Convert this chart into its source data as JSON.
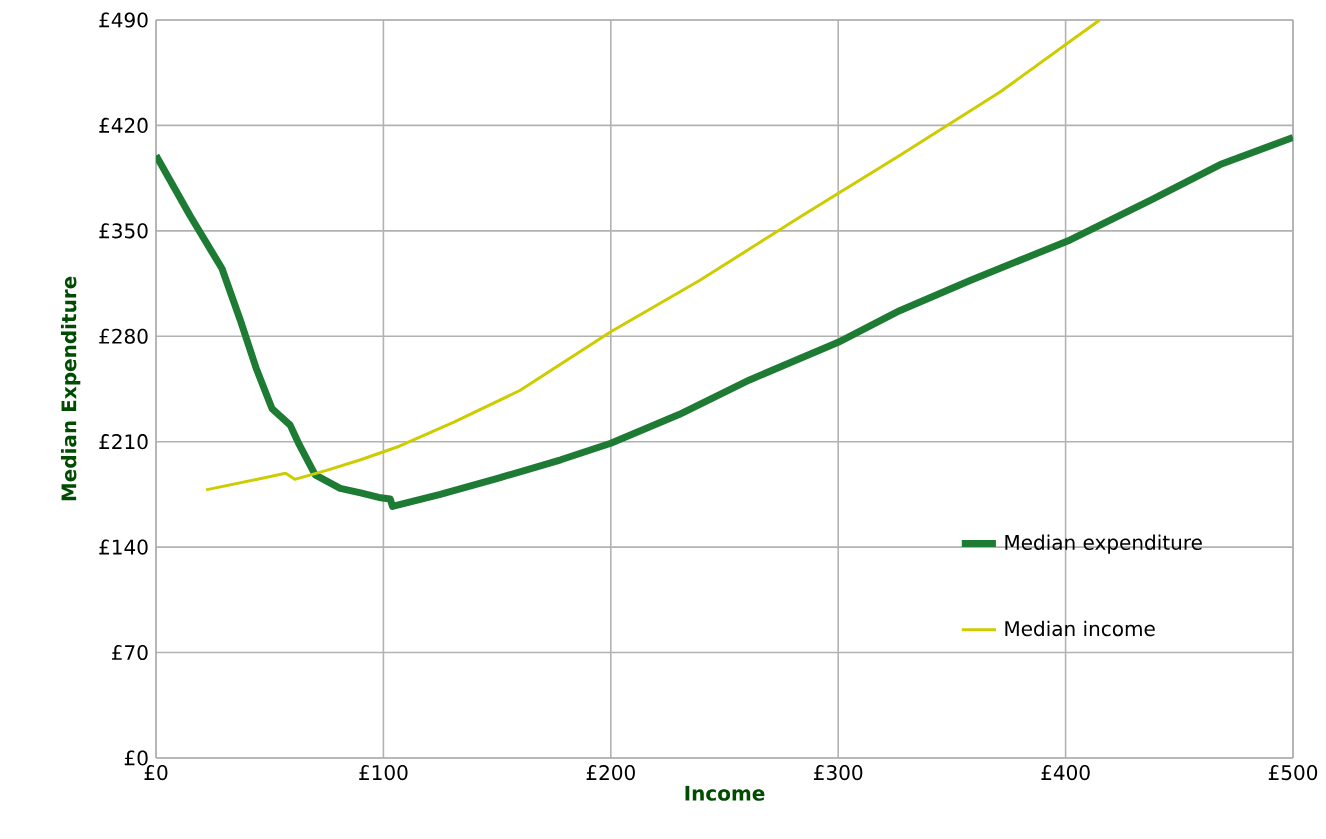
{
  "chart_data": {
    "type": "line",
    "xlabel": "Income",
    "ylabel": "Median Expenditure",
    "xlim": [
      0,
      500
    ],
    "ylim": [
      0,
      490
    ],
    "xticks": [
      {
        "value": 0,
        "label": "£0"
      },
      {
        "value": 100,
        "label": "£100"
      },
      {
        "value": 200,
        "label": "£200"
      },
      {
        "value": 300,
        "label": "£300"
      },
      {
        "value": 400,
        "label": "£400"
      },
      {
        "value": 500,
        "label": "£500"
      }
    ],
    "yticks": [
      {
        "value": 0,
        "label": "£0"
      },
      {
        "value": 70,
        "label": "£70"
      },
      {
        "value": 140,
        "label": "£140"
      },
      {
        "value": 210,
        "label": "£210"
      },
      {
        "value": 280,
        "label": "£280"
      },
      {
        "value": 350,
        "label": "£350"
      },
      {
        "value": 420,
        "label": "£420"
      },
      {
        "value": 490,
        "label": "£490"
      }
    ],
    "grid": true,
    "legend": "right",
    "series": [
      {
        "name": "Median expenditure",
        "color": "#1e7b34",
        "x": [
          0,
          15,
          29,
          37,
          44,
          51,
          59,
          63,
          70,
          81,
          90,
          98,
          103,
          104,
          125,
          151,
          178,
          200,
          230,
          261,
          300,
          327,
          358,
          402,
          437,
          468,
          500
        ],
        "values": [
          400,
          360,
          325,
          291,
          259,
          232,
          221,
          208,
          188,
          179,
          176,
          173,
          172,
          167,
          175,
          186,
          198,
          209,
          228,
          251,
          276,
          297,
          317,
          344,
          370,
          394,
          412
        ]
      },
      {
        "name": "Median income",
        "color": "#cccc00",
        "x": [
          22,
          57,
          61,
          75,
          90,
          107,
          131,
          160,
          200,
          239,
          283,
          327,
          371,
          404,
          415
        ],
        "values": [
          178,
          189,
          185,
          191,
          198,
          207,
          223,
          244,
          283,
          317,
          359,
          400,
          442,
          478,
          490
        ]
      }
    ]
  }
}
